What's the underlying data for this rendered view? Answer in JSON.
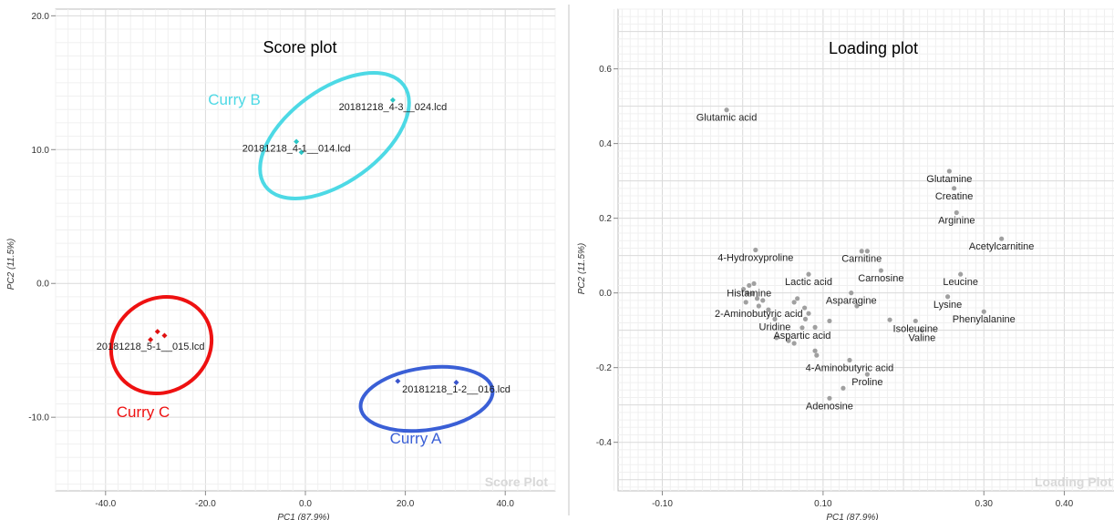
{
  "chart_data": [
    {
      "type": "scatter",
      "title": "Score plot",
      "watermark": "Score Plot",
      "xlabel": "PC1 (87.9%)",
      "ylabel": "PC2 (11.5%)",
      "xlim": [
        -50,
        50
      ],
      "ylim": [
        -15.5,
        20.5
      ],
      "xticks": [
        -40,
        -20,
        0,
        20,
        40
      ],
      "xtick_labels": [
        "-40.0",
        "-20.0",
        "0.0",
        "20.0",
        "40.0"
      ],
      "yticks": [
        -10,
        0,
        10,
        20
      ],
      "ytick_labels": [
        "-10.0",
        "0.0",
        "10.0",
        "20.0"
      ],
      "grid": true,
      "points": [
        {
          "x": 17.5,
          "y": 13.7,
          "label": "20181218_4-3__024.lcd",
          "color": "#2cc6c6"
        },
        {
          "x": -1.8,
          "y": 10.6,
          "label": "20181218_4-1__014.lcd",
          "color": "#2cc6c6"
        },
        {
          "x": -0.8,
          "y": 9.8,
          "label": "",
          "color": "#2cc6c6"
        },
        {
          "x": -29.6,
          "y": -3.6,
          "label": "",
          "color": "#e01010"
        },
        {
          "x": -28.2,
          "y": -3.9,
          "label": "",
          "color": "#e01010"
        },
        {
          "x": -31.0,
          "y": -4.2,
          "label": "20181218_5-1__015.lcd",
          "color": "#e01010"
        },
        {
          "x": 18.5,
          "y": -7.3,
          "label": "",
          "color": "#3a55cc"
        },
        {
          "x": 30.2,
          "y": -7.4,
          "label": "20181218_1-2__016.lcd",
          "color": "#3a55cc"
        }
      ],
      "groups": [
        {
          "name": "Curry B",
          "color": "#4dd9e5"
        },
        {
          "name": "Curry C",
          "color": "#ee1111"
        },
        {
          "name": "Curry A",
          "color": "#3a5fd6"
        }
      ]
    },
    {
      "type": "scatter",
      "title": "Loading plot",
      "watermark": "Loading Plot",
      "xlabel": "PC1 (87.9%)",
      "ylabel": "PC2 (11.5%)",
      "xlim": [
        -0.155,
        0.48
      ],
      "ylim": [
        -0.53,
        0.76
      ],
      "xticks": [
        -0.1,
        0.1,
        0.3,
        0.4
      ],
      "xtick_labels": [
        "-0.10",
        "0.10",
        "0.30",
        "0.40"
      ],
      "yticks": [
        -0.4,
        -0.2,
        0.0,
        0.2,
        0.4,
        0.6
      ],
      "ytick_labels": [
        "-0.4",
        "-0.2",
        "0.0",
        "0.2",
        "0.4",
        "0.6"
      ],
      "grid": true,
      "point_color": "#a0a0a0",
      "points": [
        {
          "x": -0.02,
          "y": 0.49,
          "label": "Glutamic acid"
        },
        {
          "x": 0.257,
          "y": 0.326,
          "label": "Glutamine"
        },
        {
          "x": 0.263,
          "y": 0.28,
          "label": "Creatine"
        },
        {
          "x": 0.266,
          "y": 0.215,
          "label": "Arginine"
        },
        {
          "x": 0.322,
          "y": 0.145,
          "label": "Acetylcarnitine"
        },
        {
          "x": 0.016,
          "y": 0.115,
          "label": "4-Hydroxyproline"
        },
        {
          "x": 0.148,
          "y": 0.112,
          "label": "Carnitine"
        },
        {
          "x": 0.155,
          "y": 0.112,
          "label": ""
        },
        {
          "x": 0.172,
          "y": 0.06,
          "label": "Carnosine"
        },
        {
          "x": 0.271,
          "y": 0.05,
          "label": "Leucine"
        },
        {
          "x": 0.082,
          "y": 0.05,
          "label": "Lactic acid"
        },
        {
          "x": 0.008,
          "y": 0.02,
          "label": "Histamine"
        },
        {
          "x": 0.014,
          "y": 0.025,
          "label": ""
        },
        {
          "x": 0.001,
          "y": 0.01,
          "label": ""
        },
        {
          "x": 0.006,
          "y": 0.0,
          "label": ""
        },
        {
          "x": 0.012,
          "y": -0.002,
          "label": ""
        },
        {
          "x": 0.018,
          "y": -0.015,
          "label": ""
        },
        {
          "x": 0.025,
          "y": -0.02,
          "label": ""
        },
        {
          "x": 0.004,
          "y": -0.025,
          "label": ""
        },
        {
          "x": 0.02,
          "y": -0.035,
          "label": "2-Aminobutyric acid"
        },
        {
          "x": 0.032,
          "y": -0.045,
          "label": ""
        },
        {
          "x": 0.04,
          "y": -0.07,
          "label": "Uridine"
        },
        {
          "x": 0.068,
          "y": -0.015,
          "label": ""
        },
        {
          "x": 0.064,
          "y": -0.025,
          "label": ""
        },
        {
          "x": 0.077,
          "y": -0.04,
          "label": ""
        },
        {
          "x": 0.082,
          "y": -0.055,
          "label": ""
        },
        {
          "x": 0.078,
          "y": -0.07,
          "label": ""
        },
        {
          "x": 0.135,
          "y": 0.0,
          "label": "Asparagine"
        },
        {
          "x": 0.142,
          "y": -0.035,
          "label": ""
        },
        {
          "x": 0.255,
          "y": -0.01,
          "label": "Lysine"
        },
        {
          "x": 0.3,
          "y": -0.05,
          "label": "Phenylalanine"
        },
        {
          "x": 0.183,
          "y": -0.072,
          "label": ""
        },
        {
          "x": 0.215,
          "y": -0.075,
          "label": "Isoleucine"
        },
        {
          "x": 0.223,
          "y": -0.1,
          "label": "Valine"
        },
        {
          "x": 0.074,
          "y": -0.093,
          "label": "Aspartic acid"
        },
        {
          "x": 0.09,
          "y": -0.092,
          "label": ""
        },
        {
          "x": 0.108,
          "y": -0.075,
          "label": ""
        },
        {
          "x": 0.042,
          "y": -0.12,
          "label": ""
        },
        {
          "x": 0.057,
          "y": -0.128,
          "label": ""
        },
        {
          "x": 0.064,
          "y": -0.135,
          "label": ""
        },
        {
          "x": 0.09,
          "y": -0.155,
          "label": ""
        },
        {
          "x": 0.092,
          "y": -0.167,
          "label": ""
        },
        {
          "x": 0.133,
          "y": -0.18,
          "label": "4-Aminobutyric acid"
        },
        {
          "x": 0.155,
          "y": -0.218,
          "label": "Proline"
        },
        {
          "x": 0.125,
          "y": -0.255,
          "label": ""
        },
        {
          "x": 0.108,
          "y": -0.282,
          "label": "Adenosine"
        }
      ]
    }
  ]
}
